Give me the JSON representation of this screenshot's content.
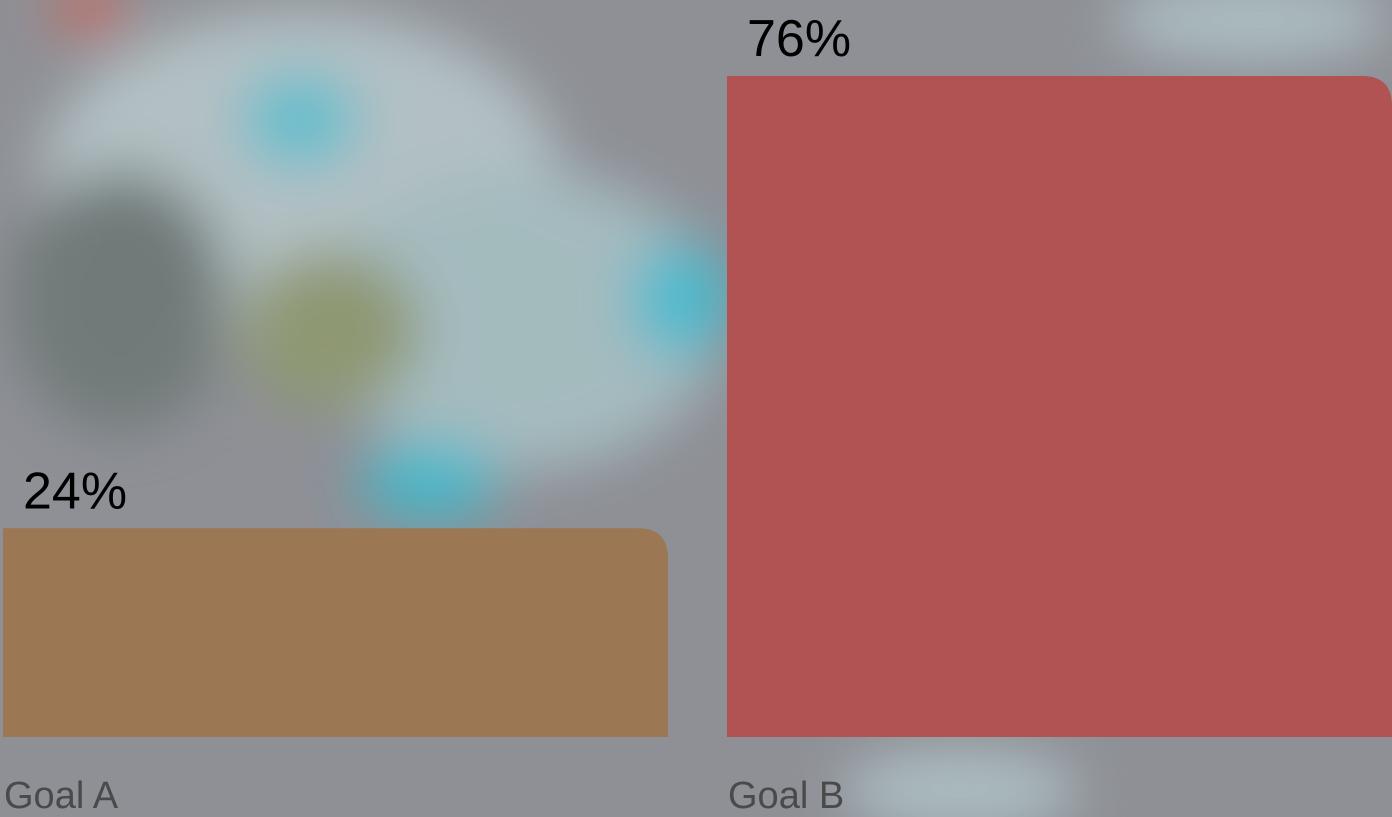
{
  "chart_data": {
    "type": "bar",
    "categories": [
      "Goal A",
      "Goal B"
    ],
    "values": [
      24,
      76
    ],
    "value_labels": [
      "24%",
      "76%"
    ],
    "colors": [
      "#9c7754",
      "#b05352"
    ]
  }
}
